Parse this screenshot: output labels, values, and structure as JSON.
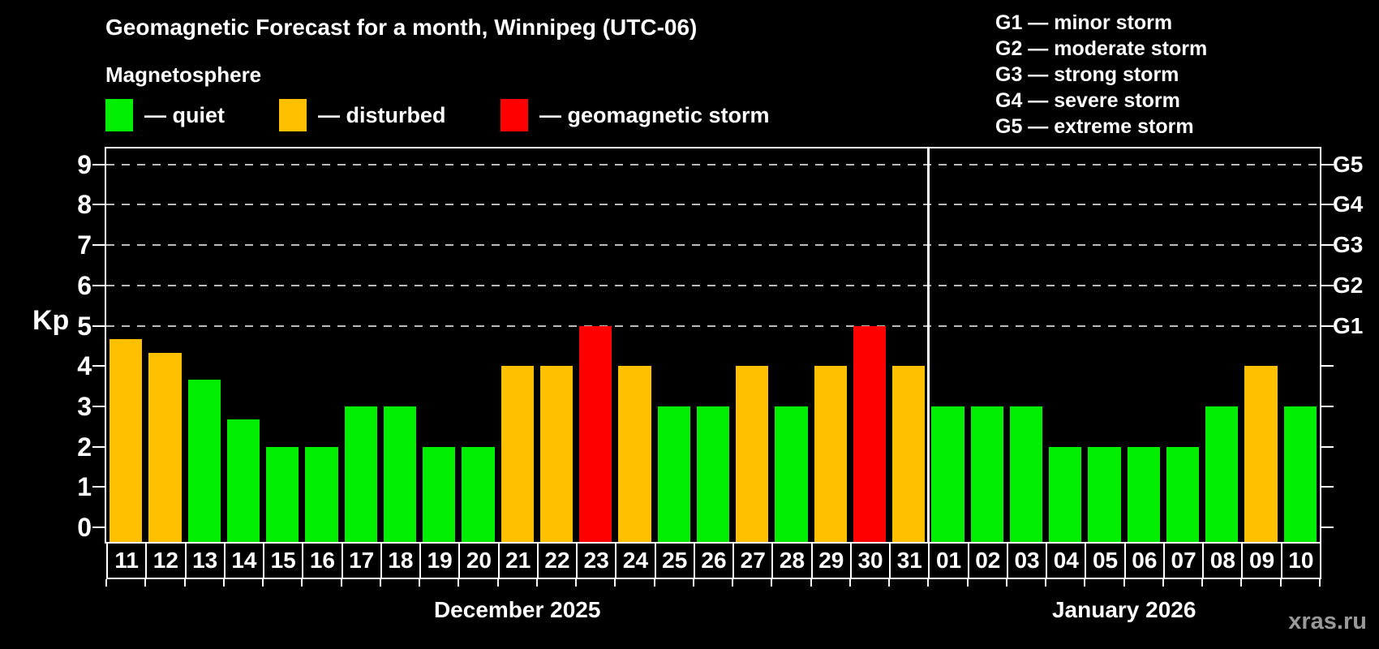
{
  "page": {
    "background": "#000000"
  },
  "header": {
    "title": "Geomagnetic Forecast for a month, Winnipeg (UTC-06)",
    "subtitle": "Magnetosphere",
    "watermark": "xras.ru"
  },
  "legend": {
    "items": [
      {
        "name": "quiet",
        "label": "— quiet",
        "color": "#00ee00"
      },
      {
        "name": "disturbed",
        "label": "— disturbed",
        "color": "#ffc000"
      },
      {
        "name": "storm",
        "label": "— geomagnetic storm",
        "color": "#ff0000"
      }
    ]
  },
  "storm_scale_legend": {
    "lines": [
      "G1 — minor storm",
      "G2 — moderate storm",
      "G3 — strong storm",
      "G4 — severe storm",
      "G5 — extreme storm"
    ]
  },
  "chart_data": {
    "type": "bar",
    "title": "Geomagnetic Forecast for a month, Winnipeg (UTC-06)",
    "xlabel": "",
    "ylabel": "Kp",
    "ylim": [
      0,
      9
    ],
    "y_ticks": [
      0,
      1,
      2,
      3,
      4,
      5,
      6,
      7,
      8,
      9
    ],
    "gridlines_at": [
      5,
      6,
      7,
      8,
      9
    ],
    "grid": "dashed-horizontal",
    "legend_position": "top-left",
    "right_axis_labels": [
      {
        "value": 5,
        "label": "G1"
      },
      {
        "value": 6,
        "label": "G2"
      },
      {
        "value": 7,
        "label": "G3"
      },
      {
        "value": 8,
        "label": "G4"
      },
      {
        "value": 9,
        "label": "G5"
      }
    ],
    "status_colors": {
      "quiet": "#00ee00",
      "disturbed": "#ffc000",
      "storm": "#ff0000"
    },
    "months": [
      {
        "label": "December 2025",
        "days": [
          {
            "day": "11",
            "kp": 4.67,
            "status": "disturbed"
          },
          {
            "day": "12",
            "kp": 4.33,
            "status": "disturbed"
          },
          {
            "day": "13",
            "kp": 3.67,
            "status": "quiet"
          },
          {
            "day": "14",
            "kp": 2.67,
            "status": "quiet"
          },
          {
            "day": "15",
            "kp": 2,
            "status": "quiet"
          },
          {
            "day": "16",
            "kp": 2,
            "status": "quiet"
          },
          {
            "day": "17",
            "kp": 3,
            "status": "quiet"
          },
          {
            "day": "18",
            "kp": 3,
            "status": "quiet"
          },
          {
            "day": "19",
            "kp": 2,
            "status": "quiet"
          },
          {
            "day": "20",
            "kp": 2,
            "status": "quiet"
          },
          {
            "day": "21",
            "kp": 4,
            "status": "disturbed"
          },
          {
            "day": "22",
            "kp": 4,
            "status": "disturbed"
          },
          {
            "day": "23",
            "kp": 5,
            "status": "storm"
          },
          {
            "day": "24",
            "kp": 4,
            "status": "disturbed"
          },
          {
            "day": "25",
            "kp": 3,
            "status": "quiet"
          },
          {
            "day": "26",
            "kp": 3,
            "status": "quiet"
          },
          {
            "day": "27",
            "kp": 4,
            "status": "disturbed"
          },
          {
            "day": "28",
            "kp": 3,
            "status": "quiet"
          },
          {
            "day": "29",
            "kp": 4,
            "status": "disturbed"
          },
          {
            "day": "30",
            "kp": 5,
            "status": "storm"
          },
          {
            "day": "31",
            "kp": 4,
            "status": "disturbed"
          }
        ]
      },
      {
        "label": "January 2026",
        "days": [
          {
            "day": "01",
            "kp": 3,
            "status": "quiet"
          },
          {
            "day": "02",
            "kp": 3,
            "status": "quiet"
          },
          {
            "day": "03",
            "kp": 3,
            "status": "quiet"
          },
          {
            "day": "04",
            "kp": 2,
            "status": "quiet"
          },
          {
            "day": "05",
            "kp": 2,
            "status": "quiet"
          },
          {
            "day": "06",
            "kp": 2,
            "status": "quiet"
          },
          {
            "day": "07",
            "kp": 2,
            "status": "quiet"
          },
          {
            "day": "08",
            "kp": 3,
            "status": "quiet"
          },
          {
            "day": "09",
            "kp": 4,
            "status": "disturbed"
          },
          {
            "day": "10",
            "kp": 3,
            "status": "quiet"
          }
        ]
      }
    ]
  }
}
